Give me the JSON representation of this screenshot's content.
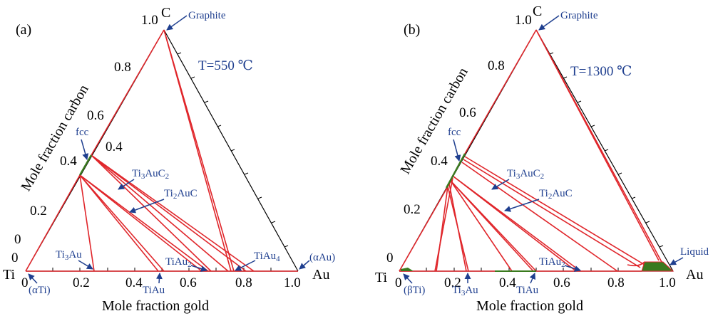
{
  "diagram": {
    "panels": [
      {
        "id": "a",
        "panel_label": "(a)",
        "temperature": "T=550 ℃",
        "corners": {
          "ti": "Ti",
          "au": "Au",
          "c": "C"
        },
        "x_axis_title": "Mole fraction gold",
        "y_axis_title": "Mole fraction carbon",
        "x_ticks": [
          "0",
          "0.2",
          "0.4",
          "0.6",
          "0.8",
          "1.0"
        ],
        "c_ticks": [
          "0",
          "0.2",
          "0.4",
          "0.6",
          "0.8",
          "1.0"
        ],
        "annotations": [
          "Graphite",
          "fcc",
          "Ti3AuC2",
          "Ti2AuC",
          "Ti3Au",
          "TiAu",
          "TiAu2",
          "TiAu4",
          "(αTi)",
          "(αAu)"
        ]
      },
      {
        "id": "b",
        "panel_label": "(b)",
        "temperature": "T=1300 ℃",
        "corners": {
          "ti": "Ti",
          "au": "Au",
          "c": "C"
        },
        "x_axis_title": "Mole fraction gold",
        "y_axis_title": "Mole fraction carbon",
        "x_ticks": [
          "0",
          "0.2",
          "0.4",
          "0.6",
          "0.8",
          "1.0"
        ],
        "c_ticks": [
          "0",
          "0.2",
          "0.4",
          "0.6",
          "0.8",
          "1.0"
        ],
        "annotations": [
          "Graphite",
          "fcc",
          "Ti3AuC2",
          "Ti2AuC",
          "TiAu2",
          "Ti3Au",
          "TiAu",
          "(βTi)",
          "Liquid"
        ]
      }
    ],
    "labels": {
      "a_graphite": "Graphite",
      "a_fcc": "fcc",
      "a_ti3auc2_main": "Ti",
      "a_ti3auc2_s1": "3",
      "a_ti3auc2_mid": "AuC",
      "a_ti3auc2_s2": "2",
      "a_ti2auc_main": "Ti",
      "a_ti2auc_s1": "2",
      "a_ti2auc_end": "AuC",
      "a_ti3au_main": "Ti",
      "a_ti3au_s1": "3",
      "a_ti3au_end": "Au",
      "a_tiau": "TiAu",
      "a_tiau2_main": "TiAu",
      "a_tiau2_s": "2",
      "a_tiau4_main": "TiAu",
      "a_tiau4_s": "4",
      "a_alphati": "(αTi)",
      "a_alphaau": "(αAu)",
      "b_graphite": "Graphite",
      "b_fcc": "fcc",
      "b_ti3auc2_main": "Ti",
      "b_ti3auc2_s1": "3",
      "b_ti3auc2_mid": "AuC",
      "b_ti3auc2_s2": "2",
      "b_ti2auc_main": "Ti",
      "b_ti2auc_s1": "2",
      "b_ti2auc_end": "AuC",
      "b_tiau2_main": "TiAu",
      "b_tiau2_s": "2",
      "b_ti3au_main": "Ti",
      "b_ti3au_s1": "3",
      "b_ti3au_end": "Au",
      "b_tiau": "TiAu",
      "b_betati": "(βTi)",
      "b_liquid": "Liquid"
    },
    "colors": {
      "tie_line": "#e0262b",
      "phase_green": "#3a7a1e",
      "annotation_blue": "#1f3f8f",
      "frame": "#000000"
    }
  }
}
